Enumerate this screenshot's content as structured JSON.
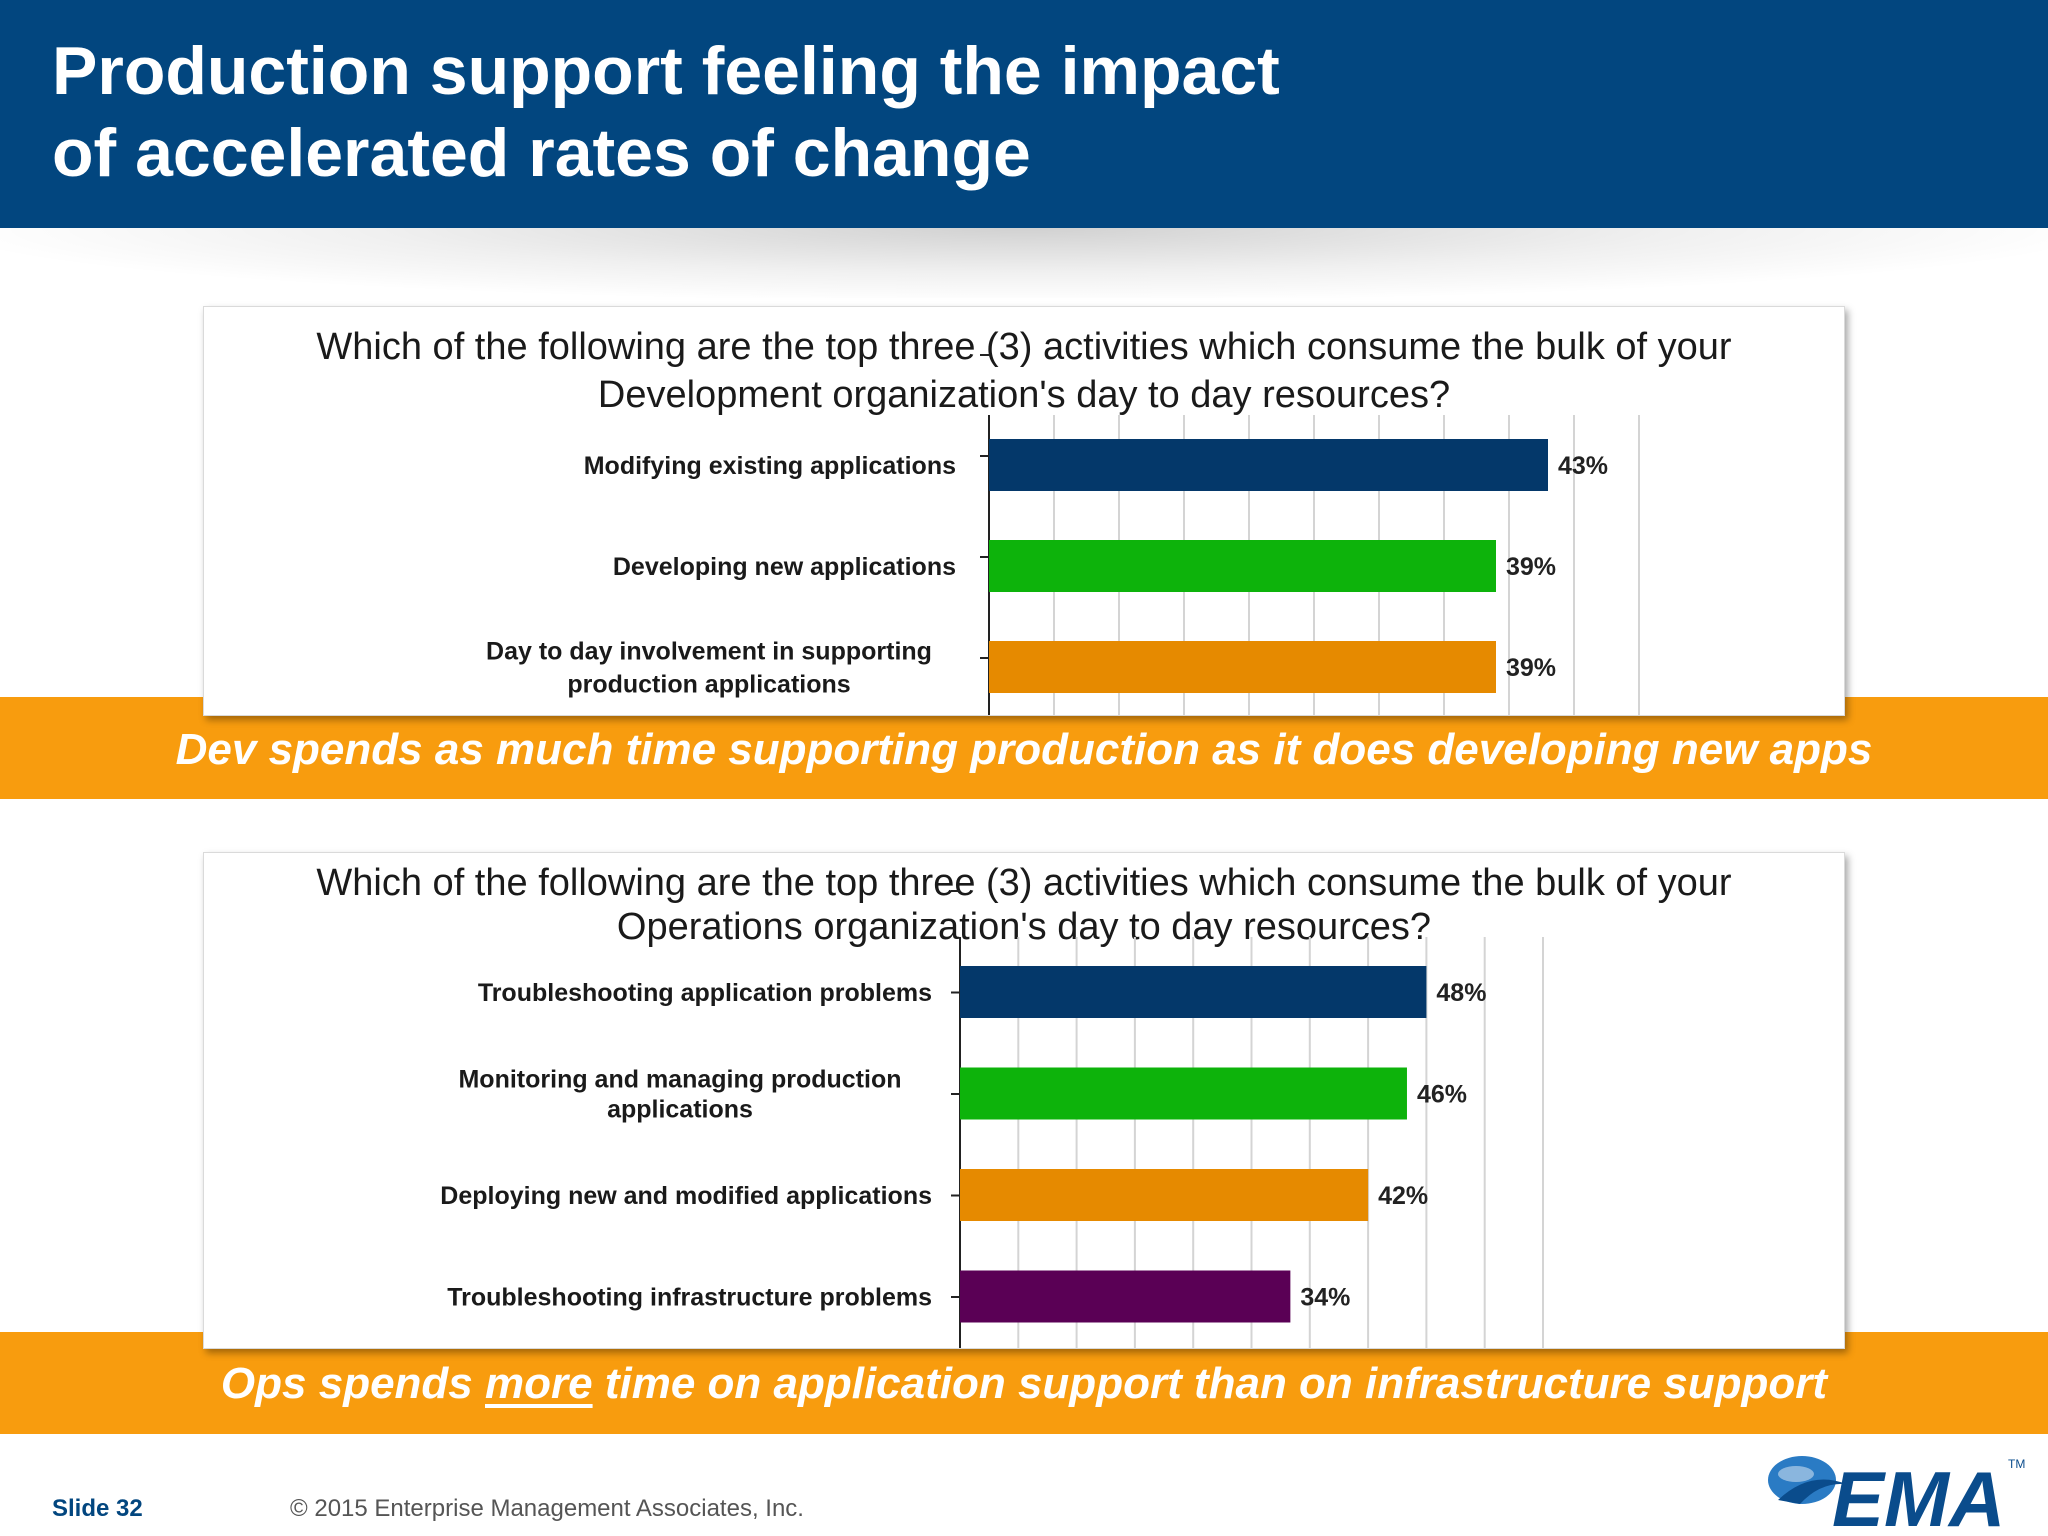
{
  "header": {
    "title_line1": "Production support feeling the impact",
    "title_line2": "of accelerated rates of change",
    "background_color": "#02467f"
  },
  "callouts": {
    "dev": "Dev spends as much time supporting production as it does developing new apps",
    "ops_before": "Ops spends ",
    "ops_emphasis": "more",
    "ops_after": " time on application support than on infrastructure support",
    "band_color": "#f89c0e"
  },
  "footer": {
    "slide": "Slide 32",
    "copyright": "© 2015 Enterprise Management Associates, Inc."
  },
  "logo": {
    "text": "EMA",
    "trademark": "TM"
  },
  "chart_data": [
    {
      "type": "bar",
      "orientation": "horizontal",
      "title_line1": "Which of the following are the top three (3) activities which consume the bulk of your",
      "title_line2": "Development organization's day to day resources?",
      "categories": [
        [
          "Modifying existing applications"
        ],
        [
          "Developing new applications"
        ],
        [
          "Day to day involvement in supporting",
          "production applications"
        ]
      ],
      "values": [
        43,
        39,
        39
      ],
      "labels": [
        "43%",
        "39%",
        "39%"
      ],
      "colors": [
        "#04386a",
        "#0db30b",
        "#e68a00"
      ],
      "xlim": [
        0,
        50
      ],
      "grid": true
    },
    {
      "type": "bar",
      "orientation": "horizontal",
      "title_line1": "Which of the following are the top three (3) activities which consume the bulk of your",
      "title_line2": "Operations organization's day to day resources?",
      "categories": [
        [
          "Troubleshooting application problems"
        ],
        [
          "Monitoring and managing production",
          "applications"
        ],
        [
          "Deploying new and modified applications"
        ],
        [
          "Troubleshooting infrastructure problems"
        ]
      ],
      "values": [
        48,
        46,
        42,
        34
      ],
      "labels": [
        "48%",
        "46%",
        "42%",
        "34%"
      ],
      "colors": [
        "#04386a",
        "#0db30b",
        "#e68a00",
        "#5a0055"
      ],
      "xlim": [
        0,
        60
      ],
      "grid": true
    }
  ]
}
